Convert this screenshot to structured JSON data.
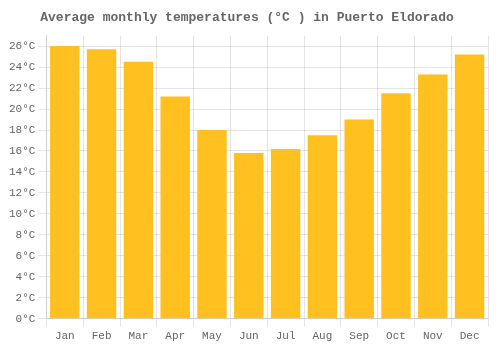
{
  "chart_data": {
    "type": "bar",
    "title": "Average monthly temperatures (°C ) in Puerto Eldorado",
    "categories": [
      "Jan",
      "Feb",
      "Mar",
      "Apr",
      "May",
      "Jun",
      "Jul",
      "Aug",
      "Sep",
      "Oct",
      "Nov",
      "Dec"
    ],
    "values": [
      26.0,
      25.7,
      24.5,
      21.2,
      18.0,
      15.8,
      16.2,
      17.5,
      19.0,
      21.5,
      23.3,
      25.2
    ],
    "color": "#FFC020",
    "ylim": [
      0,
      27
    ],
    "yticks": [
      {
        "value": 0,
        "label": "0°C"
      },
      {
        "value": 2,
        "label": "2°C"
      },
      {
        "value": 4,
        "label": "4°C"
      },
      {
        "value": 6,
        "label": "6°C"
      },
      {
        "value": 8,
        "label": "8°C"
      },
      {
        "value": 10,
        "label": "10°C"
      },
      {
        "value": 12,
        "label": "12°C"
      },
      {
        "value": 14,
        "label": "14°C"
      },
      {
        "value": 16,
        "label": "16°C"
      },
      {
        "value": 18,
        "label": "18°C"
      },
      {
        "value": 20,
        "label": "20°C"
      },
      {
        "value": 22,
        "label": "22°C"
      },
      {
        "value": 24,
        "label": "24°C"
      },
      {
        "value": 26,
        "label": "26°C"
      }
    ],
    "grid": true
  }
}
